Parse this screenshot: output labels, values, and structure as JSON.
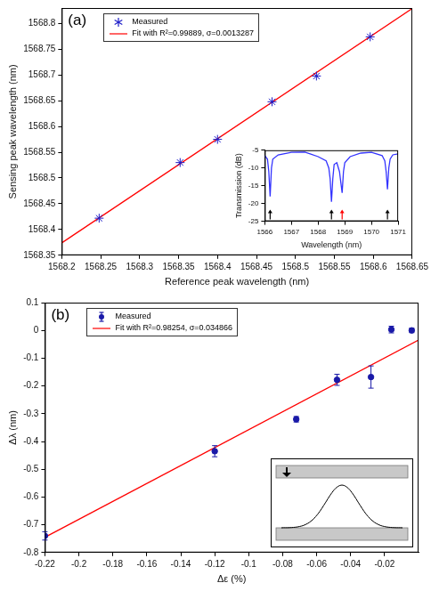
{
  "chart_data": [
    {
      "type": "scatter",
      "panel": "(a)",
      "x_label": "Reference peak wavelength (nm)",
      "y_label": "Sensing peak wavelength (nm)",
      "xlim": [
        1568.2,
        1568.65
      ],
      "xticks": [
        1568.2,
        1568.25,
        1568.3,
        1568.35,
        1568.4,
        1568.45,
        1568.5,
        1568.55,
        1568.6,
        1568.65
      ],
      "ylim": [
        1568.35,
        1568.83
      ],
      "yticks": [
        1568.35,
        1568.4,
        1568.45,
        1568.5,
        1568.55,
        1568.6,
        1568.65,
        1568.7,
        1568.75,
        1568.8
      ],
      "grid": false,
      "legend": "upper left",
      "series": [
        {
          "name": "Measured",
          "type": "scatter",
          "marker": "star",
          "color": "#1c1cc8",
          "x": [
            1568.248,
            1568.352,
            1568.4,
            1568.47,
            1568.527,
            1568.596
          ],
          "values": [
            1568.422,
            1568.53,
            1568.575,
            1568.648,
            1568.698,
            1568.774
          ]
        },
        {
          "name": "Fit with R²=0.99889, σ=0.0013287",
          "type": "line",
          "marker": "none",
          "line_style": "solid",
          "color": "#ff0000",
          "x": [
            1568.2,
            1568.65
          ],
          "values": [
            1568.374,
            1568.829
          ]
        }
      ]
    },
    {
      "type": "line",
      "x_label": "Wavelength (nm)",
      "y_label": "Transmission (dB)",
      "xlim": [
        1566,
        1571
      ],
      "xticks": [
        1566,
        1567,
        1568,
        1569,
        1570,
        1571
      ],
      "ylim": [
        -25,
        -5
      ],
      "yticks": [
        -25,
        -20,
        -15,
        -10,
        -5
      ],
      "grid": false,
      "series": [
        {
          "type": "line",
          "marker": "none",
          "line_style": "solid",
          "color": "#3333ff",
          "x": [
            1566,
            1566.1,
            1566.15,
            1566.2,
            1566.25,
            1566.3,
            1566.5,
            1567.0,
            1567.5,
            1567.7,
            1568.0,
            1568.3,
            1568.4,
            1568.45,
            1568.5,
            1568.55,
            1568.6,
            1568.7,
            1568.8,
            1568.85,
            1568.9,
            1568.95,
            1569.0,
            1569.2,
            1569.6,
            1570.0,
            1570.4,
            1570.5,
            1570.55,
            1570.6,
            1570.65,
            1570.7,
            1570.8,
            1571
          ],
          "values": [
            -6.5,
            -7.5,
            -11,
            -18,
            -10,
            -7.5,
            -6.3,
            -5.6,
            -5.5,
            -6,
            -6.8,
            -8,
            -10,
            -13,
            -19.5,
            -13,
            -9,
            -8.5,
            -11,
            -14,
            -17,
            -11,
            -8.5,
            -6.8,
            -5.8,
            -5.6,
            -6.5,
            -8,
            -11,
            -16,
            -10,
            -7.5,
            -6.3,
            -6
          ]
        }
      ],
      "arrows": [
        {
          "x": 1566.2,
          "color": "#000000"
        },
        {
          "x": 1568.5,
          "color": "#000000"
        },
        {
          "x": 1568.9,
          "color": "#ff0000"
        },
        {
          "x": 1570.6,
          "color": "#000000"
        }
      ]
    },
    {
      "type": "scatter",
      "panel": "(b)",
      "x_label": "Δε (%)",
      "y_label": "Δλ (nm)",
      "xlim": [
        -0.22,
        0
      ],
      "xticks": [
        -0.22,
        -0.2,
        -0.18,
        -0.16,
        -0.14,
        -0.12,
        -0.1,
        -0.08,
        -0.06,
        -0.04,
        -0.02
      ],
      "ylim": [
        -0.8,
        0.1
      ],
      "yticks": [
        -0.8,
        -0.7,
        -0.6,
        -0.5,
        -0.4,
        -0.3,
        -0.2,
        -0.1,
        0,
        0.1
      ],
      "grid": false,
      "legend": "upper left",
      "series": [
        {
          "name": "Measured",
          "type": "scatter",
          "marker": "circle",
          "color": "#1a1aa8",
          "x": [
            -0.22,
            -0.12,
            -0.072,
            -0.048,
            -0.028,
            -0.016,
            -0.004
          ],
          "values": [
            -0.74,
            -0.435,
            -0.32,
            -0.178,
            -0.168,
            0.003,
            0
          ],
          "errors": [
            0.015,
            0.02,
            0.01,
            0.02,
            0.04,
            0.012,
            0.008
          ]
        },
        {
          "name": "Fit with R²=0.98254, σ=0.034866",
          "type": "line",
          "marker": "none",
          "line_style": "solid",
          "color": "#ff0000",
          "x": [
            -0.22,
            0
          ],
          "values": [
            -0.745,
            -0.035
          ]
        }
      ]
    }
  ]
}
